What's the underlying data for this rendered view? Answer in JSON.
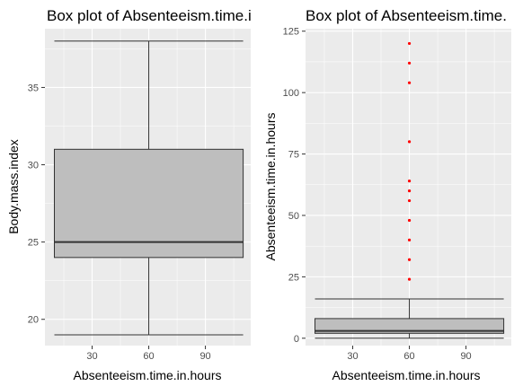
{
  "chart_data": [
    {
      "type": "boxplot",
      "title": "Box plot of Absenteeism.time.i",
      "xlabel": "Absenteeism.time.in.hours",
      "ylabel": "Body.mass.index",
      "xlim": [
        5,
        114
      ],
      "ylim": [
        18.3,
        38.8
      ],
      "x_ticks": [
        30,
        60,
        90
      ],
      "x_tick_labels": [
        "30",
        "60",
        "90"
      ],
      "y_ticks": [
        20,
        25,
        30,
        35
      ],
      "y_tick_labels": [
        "20",
        "25",
        "30",
        "35"
      ],
      "box": {
        "x_min": 10,
        "x_max": 110,
        "x_center": 60,
        "min": 19,
        "q1": 24,
        "median": 25,
        "q3": 31,
        "max": 38
      },
      "outliers": [],
      "grid": true,
      "colors": {
        "panel": "#ebebeb",
        "grid": "#ffffff",
        "box_fill": "#bebebe",
        "line": "#333333",
        "outlier": "#ff0000"
      }
    },
    {
      "type": "boxplot",
      "title": "Box plot of Absenteeism.time.",
      "xlabel": "Absenteeism.time.in.hours",
      "ylabel": "Absenteeism.time.in.hours",
      "xlim": [
        5,
        114
      ],
      "ylim": [
        -3,
        126
      ],
      "x_ticks": [
        30,
        60,
        90
      ],
      "x_tick_labels": [
        "30",
        "60",
        "90"
      ],
      "y_ticks": [
        0,
        25,
        50,
        75,
        100,
        125
      ],
      "y_tick_labels": [
        "0",
        "25",
        "50",
        "75",
        "100",
        "125"
      ],
      "box": {
        "x_min": 10,
        "x_max": 110,
        "x_center": 60,
        "min": 0,
        "q1": 2,
        "median": 3,
        "q3": 8,
        "max": 16
      },
      "outliers": [
        24,
        32,
        40,
        48,
        56,
        60,
        64,
        80,
        104,
        112,
        120
      ],
      "grid": true,
      "colors": {
        "panel": "#ebebeb",
        "grid": "#ffffff",
        "box_fill": "#bebebe",
        "line": "#333333",
        "outlier": "#ff0000"
      }
    }
  ]
}
